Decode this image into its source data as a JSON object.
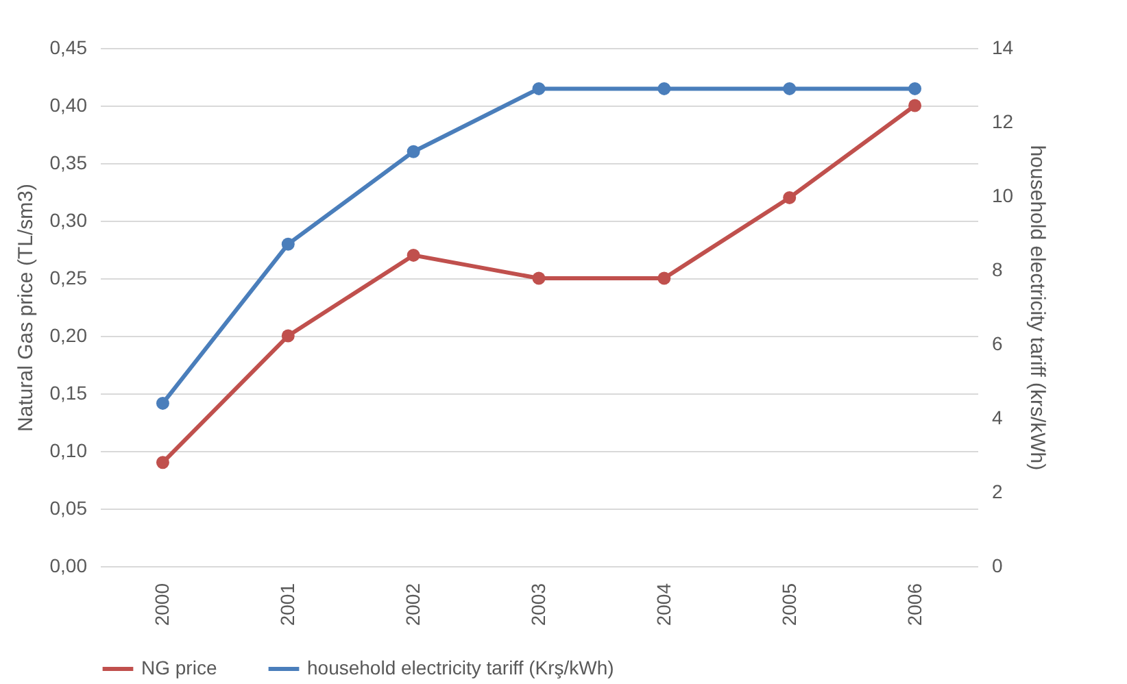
{
  "chart_data": {
    "type": "line",
    "categories": [
      "2000",
      "2001",
      "2002",
      "2003",
      "2004",
      "2005",
      "2006"
    ],
    "ylabel": "Natural Gas price (TL/sm3)",
    "y2label": "household electricity tariff (krs/kWh)",
    "series": [
      {
        "name": "NG price",
        "color": "#c0504d",
        "values": [
          0.09,
          0.2,
          0.27,
          0.25,
          0.25,
          0.32,
          0.4
        ]
      },
      {
        "name": "household electricity tariff (Krş/kWh)",
        "color": "#4a7ebb",
        "axis": "y2",
        "values": [
          4.4,
          8.7,
          11.2,
          12.9,
          12.9,
          12.9,
          12.9
        ]
      }
    ],
    "ylim": [
      0,
      0.45
    ],
    "yticks": [
      {
        "value": 0,
        "label": "0,00"
      },
      {
        "value": 0.05,
        "label": "0,05"
      },
      {
        "value": 0.1,
        "label": "0,10"
      },
      {
        "value": 0.15,
        "label": "0,15"
      },
      {
        "value": 0.2,
        "label": "0,20"
      },
      {
        "value": 0.25,
        "label": "0,25"
      },
      {
        "value": 0.3,
        "label": "0,30"
      },
      {
        "value": 0.35,
        "label": "0,35"
      },
      {
        "value": 0.4,
        "label": "0,40"
      },
      {
        "value": 0.45,
        "label": "0,45"
      }
    ],
    "y2lim": [
      0,
      14
    ],
    "y2ticks": [
      0,
      2,
      4,
      6,
      8,
      10,
      12,
      14
    ],
    "grid": "y",
    "legend": "bottom",
    "marker": "circle",
    "line_style": "solid"
  }
}
